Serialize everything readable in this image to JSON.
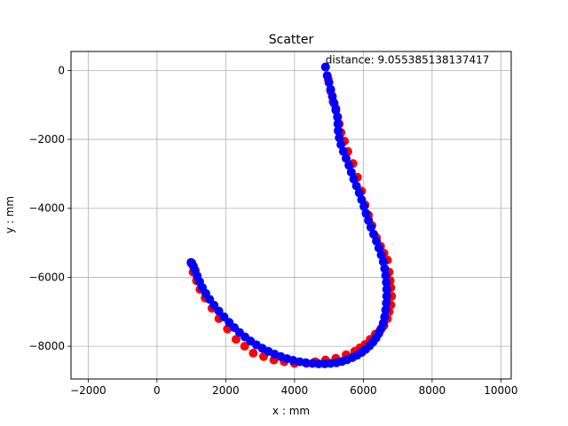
{
  "chart_data": {
    "type": "scatter",
    "title": "Scatter",
    "xlabel": "x : mm",
    "ylabel": "y : mm",
    "xlim": [
      -2500,
      10300
    ],
    "ylim": [
      -8950,
      550
    ],
    "xticks": [
      -2000,
      0,
      2000,
      4000,
      6000,
      8000,
      10000
    ],
    "yticks": [
      0,
      -2000,
      -4000,
      -6000,
      -8000
    ],
    "grid": true,
    "annotation": {
      "text": "distance: 9.055385138137417",
      "x": 4900,
      "y": 100
    },
    "series": [
      {
        "color": "#ff0000",
        "x": [
          4900,
          4980,
          5050,
          5120,
          5200,
          5250,
          5300,
          5350,
          5450,
          5550,
          5700,
          5830,
          5950,
          6050,
          6150,
          6250,
          6380,
          6500,
          6600,
          6700,
          6750,
          6780,
          6800,
          6820,
          6800,
          6750,
          6700,
          6600,
          6480,
          6350,
          6200,
          6050,
          5900,
          5750,
          5500,
          5200,
          4900,
          4600,
          4350,
          4000,
          3700,
          3400,
          3100,
          2800,
          2550,
          2300,
          2050,
          1800,
          1600,
          1400,
          1250,
          1150,
          1050,
          1000
        ],
        "y": [
          100,
          -250,
          -600,
          -900,
          -1100,
          -1350,
          -1550,
          -1800,
          -2050,
          -2350,
          -2700,
          -3100,
          -3500,
          -3900,
          -4200,
          -4500,
          -4850,
          -5100,
          -5300,
          -5500,
          -5850,
          -6100,
          -6300,
          -6550,
          -6800,
          -7000,
          -7200,
          -7400,
          -7550,
          -7650,
          -7800,
          -7950,
          -8050,
          -8150,
          -8250,
          -8350,
          -8400,
          -8450,
          -8500,
          -8500,
          -8450,
          -8400,
          -8300,
          -8200,
          -8000,
          -7800,
          -7500,
          -7200,
          -6900,
          -6600,
          -6350,
          -6100,
          -5850,
          -5600
        ]
      },
      {
        "color": "#0000ff",
        "x": [
          4900,
          4950,
          5000,
          5050,
          5100,
          5150,
          5200,
          5250,
          5260,
          5270,
          5300,
          5350,
          5420,
          5500,
          5580,
          5650,
          5720,
          5800,
          5880,
          5950,
          6020,
          6080,
          6150,
          6220,
          6300,
          6380,
          6450,
          6520,
          6580,
          6620,
          6650,
          6670,
          6680,
          6680,
          6670,
          6650,
          6620,
          6580,
          6520,
          6450,
          6370,
          6280,
          6180,
          6070,
          5950,
          5820,
          5680,
          5530,
          5380,
          5220,
          5050,
          4880,
          4700,
          4520,
          4330,
          4150,
          3960,
          3780,
          3600,
          3420,
          3240,
          3060,
          2890,
          2720,
          2560,
          2400,
          2250,
          2100,
          1950,
          1800,
          1660,
          1530,
          1420,
          1320,
          1240,
          1170,
          1110,
          1060,
          1020,
          1000,
          990
        ],
        "y": [
          100,
          -150,
          -350,
          -550,
          -750,
          -950,
          -1150,
          -1350,
          -1550,
          -1750,
          -1950,
          -2150,
          -2350,
          -2550,
          -2750,
          -2950,
          -3150,
          -3350,
          -3550,
          -3750,
          -3950,
          -4150,
          -4350,
          -4550,
          -4750,
          -4950,
          -5150,
          -5350,
          -5550,
          -5750,
          -5950,
          -6150,
          -6350,
          -6550,
          -6750,
          -6950,
          -7150,
          -7330,
          -7490,
          -7630,
          -7760,
          -7880,
          -7990,
          -8090,
          -8180,
          -8260,
          -8330,
          -8390,
          -8440,
          -8480,
          -8500,
          -8510,
          -8510,
          -8500,
          -8480,
          -8450,
          -8410,
          -8360,
          -8300,
          -8230,
          -8150,
          -8060,
          -7960,
          -7850,
          -7730,
          -7600,
          -7460,
          -7310,
          -7150,
          -6980,
          -6810,
          -6640,
          -6470,
          -6300,
          -6130,
          -5960,
          -5800,
          -5680,
          -5600,
          -5580,
          -5570
        ]
      }
    ]
  }
}
